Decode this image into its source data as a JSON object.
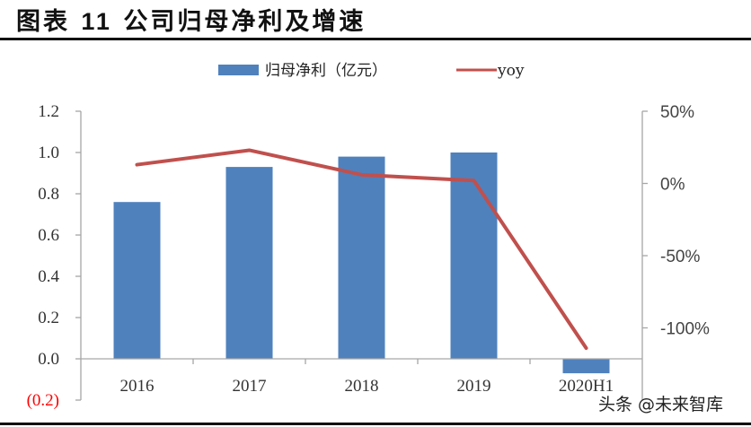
{
  "header": {
    "title_prefix": "图表",
    "title_number": "11",
    "title_text": "公司归母净利及增速"
  },
  "legend": {
    "bar_label": "归母净利（亿元）",
    "line_label": "yoy"
  },
  "colors": {
    "bar": "#4f81bd",
    "line": "#c0504d",
    "axis": "#a6a6a6",
    "negative_tick": "#ff0000"
  },
  "watermark": "头条 @未来智库",
  "chart_data": {
    "type": "bar+line",
    "title": "图表11 公司归母净利及增速",
    "categories": [
      "2016",
      "2017",
      "2018",
      "2019",
      "2020H1"
    ],
    "series": [
      {
        "name": "归母净利（亿元）",
        "type": "bar",
        "axis": "left",
        "values": [
          0.76,
          0.93,
          0.98,
          1.0,
          -0.07
        ]
      },
      {
        "name": "yoy",
        "type": "line",
        "axis": "right",
        "values": [
          0.13,
          0.23,
          0.06,
          0.02,
          -1.14
        ]
      }
    ],
    "left_axis": {
      "ticks": [
        "1.2",
        "1.0",
        "0.8",
        "0.6",
        "0.4",
        "0.2",
        "0.0",
        "(0.2)"
      ],
      "ylim": [
        -0.2,
        1.2
      ]
    },
    "right_axis": {
      "ticks": [
        "50%",
        "0%",
        "-50%",
        "-100%"
      ],
      "ylim": [
        -1.5,
        0.5
      ]
    },
    "legend_position": "top",
    "grid": false
  }
}
